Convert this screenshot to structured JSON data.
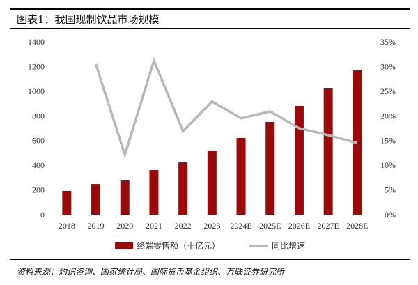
{
  "title": "图表1：我国现制饮品市场规模",
  "source": "资料来源：灼识咨询、国家统计局、国际货币基金组织、万联证券研究所",
  "chart_data": {
    "type": "bar+line",
    "categories": [
      "2018",
      "2019",
      "2020",
      "2021",
      "2022",
      "2023",
      "2024E",
      "2025E",
      "2026E",
      "2027E",
      "2028E"
    ],
    "series": [
      {
        "name": "终端零售额（十亿元）",
        "type": "bar",
        "axis": "left",
        "color": "#9b0a0a",
        "values": [
          192,
          248,
          277,
          361,
          423,
          519,
          621,
          751,
          881,
          1022,
          1169
        ]
      },
      {
        "name": "同比增速",
        "type": "line",
        "axis": "right",
        "color": "#b8b8b8",
        "values": [
          null,
          30.5,
          12.1,
          31.2,
          16.9,
          22.9,
          19.5,
          20.9,
          17.5,
          16.1,
          14.5
        ]
      }
    ],
    "yleft": {
      "lim": [
        0,
        1400
      ],
      "ticks": [
        "0",
        "200",
        "400",
        "600",
        "800",
        "1000",
        "1200",
        "1400"
      ]
    },
    "yright": {
      "lim": [
        0,
        35
      ],
      "ticks": [
        "0%",
        "5%",
        "10%",
        "15%",
        "20%",
        "25%",
        "30%",
        "35%"
      ]
    },
    "grid": false,
    "legend": "bottom"
  }
}
